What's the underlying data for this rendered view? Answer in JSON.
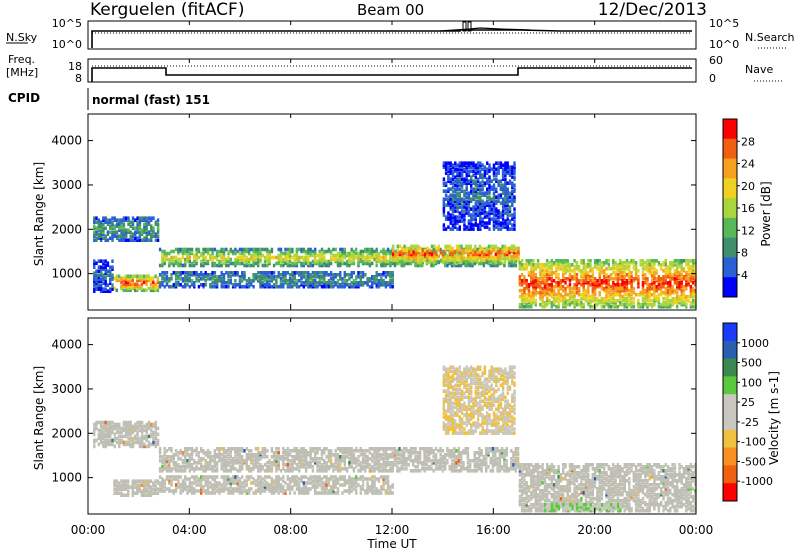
{
  "header": {
    "station": "Kerguelen (fitACF)",
    "beam": "Beam 00",
    "date": "12/Dec/2013"
  },
  "noise_panel": {
    "left_label": "N.Sky",
    "right_label": "N.Search",
    "left_ticks": [
      "10^5",
      "10^0"
    ],
    "right_ticks": [
      "10^5",
      "10^0"
    ]
  },
  "freq_panel": {
    "left_label_1": "Freq.",
    "left_label_2": "[MHz]",
    "right_label": "Nave",
    "left_ticks": [
      "18",
      "8"
    ],
    "right_ticks": [
      "60",
      "0"
    ]
  },
  "cpid": {
    "label": "CPID",
    "value": "normal (fast) 151"
  },
  "colors": {
    "power": [
      "#0000ff",
      "#2a5fd6",
      "#3f8f6f",
      "#57b85a",
      "#a8d63c",
      "#f0d020",
      "#f7a020",
      "#f06010",
      "#ff0000"
    ],
    "velocity": [
      "#ff0000",
      "#f06010",
      "#f79020",
      "#f0c040",
      "#c8c8c0",
      "#c8c8c0",
      "#5cc83c",
      "#3a8a50",
      "#2a5fb0",
      "#1a3aff"
    ],
    "ground_scatter": "#bfbfb4"
  },
  "chart_data": [
    {
      "type": "heatmap",
      "panel": "power",
      "xlabel": "Time UT",
      "ylabel": "Slant Range [km]",
      "xlim": [
        0,
        24
      ],
      "ylim": [
        180,
        4600
      ],
      "x_ticks": [
        "00:00",
        "04:00",
        "08:00",
        "12:00",
        "16:00",
        "20:00",
        "00:00"
      ],
      "y_ticks": [
        "1000",
        "2000",
        "3000",
        "4000"
      ],
      "colorbar": {
        "label": "Power [dB]",
        "ticks": [
          "28",
          "24",
          "20",
          "16",
          "12",
          "8",
          "4"
        ],
        "range": [
          0,
          30
        ]
      },
      "bands": [
        {
          "t0": 0.2,
          "t1": 2.8,
          "r0": 1750,
          "r1": 2250,
          "level": 10
        },
        {
          "t0": 1.0,
          "t1": 2.8,
          "r0": 620,
          "r1": 950,
          "level": 27
        },
        {
          "t0": 0.2,
          "t1": 1.0,
          "r0": 600,
          "r1": 1300,
          "level": 6
        },
        {
          "t0": 2.8,
          "t1": 17.0,
          "r0": 1180,
          "r1": 1550,
          "level": 18
        },
        {
          "t0": 12.0,
          "t1": 17.0,
          "r0": 1250,
          "r1": 1650,
          "level": 26
        },
        {
          "t0": 2.8,
          "t1": 12.0,
          "r0": 700,
          "r1": 1050,
          "level": 9
        },
        {
          "t0": 14.0,
          "t1": 16.8,
          "r0": 2000,
          "r1": 3500,
          "level": 6
        },
        {
          "t0": 17.0,
          "t1": 24.0,
          "r0": 250,
          "r1": 1300,
          "level": 27
        }
      ]
    },
    {
      "type": "heatmap",
      "panel": "velocity",
      "xlabel": "Time UT",
      "ylabel": "Slant Range [km]",
      "xlim": [
        0,
        24
      ],
      "ylim": [
        180,
        4600
      ],
      "x_ticks": [
        "00:00",
        "04:00",
        "08:00",
        "12:00",
        "16:00",
        "20:00",
        "00:00"
      ],
      "y_ticks": [
        "1000",
        "2000",
        "3000",
        "4000"
      ],
      "colorbar": {
        "label": "Velocity [m s-1]",
        "ticks": [
          "1000",
          "500",
          "100",
          "25",
          "-25",
          "-100",
          "-500",
          "-1000"
        ],
        "range": [
          -1000,
          1000
        ]
      },
      "bands": [
        {
          "t0": 0.2,
          "t1": 2.8,
          "r0": 1700,
          "r1": 2250,
          "level": 0
        },
        {
          "t0": 1.0,
          "t1": 2.8,
          "r0": 600,
          "r1": 950,
          "level": 0
        },
        {
          "t0": 2.8,
          "t1": 17.0,
          "r0": 1150,
          "r1": 1650,
          "level": 0
        },
        {
          "t0": 2.8,
          "t1": 12.0,
          "r0": 650,
          "r1": 1050,
          "level": 0
        },
        {
          "t0": 14.0,
          "t1": 16.8,
          "r0": 2000,
          "r1": 3500,
          "level": -150
        },
        {
          "t0": 17.0,
          "t1": 24.0,
          "r0": 250,
          "r1": 1300,
          "level": 0
        },
        {
          "t0": 18.0,
          "t1": 21.0,
          "r0": 250,
          "r1": 400,
          "level": 200
        }
      ]
    }
  ]
}
